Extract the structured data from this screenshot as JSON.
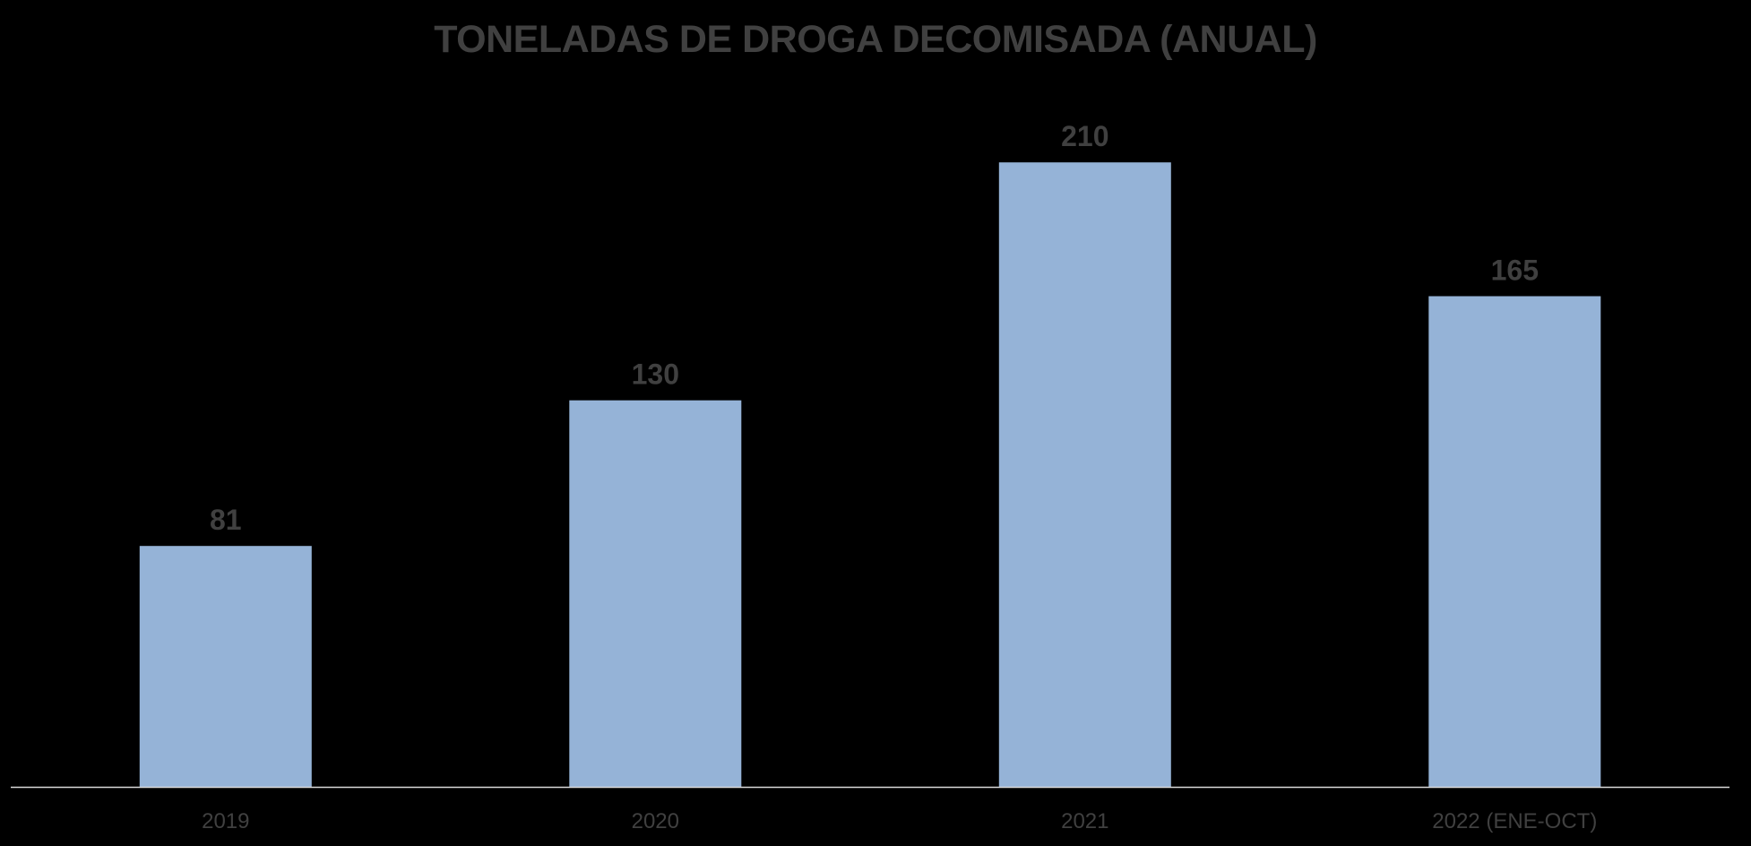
{
  "colors": {
    "background": "#000000",
    "bar": "#95B3D7",
    "text": "#404040",
    "axis": "#D9D9D9"
  },
  "chart_data": {
    "type": "bar",
    "title": "TONELADAS DE DROGA DECOMISADA (ANUAL)",
    "categories": [
      "2019",
      "2020",
      "2021",
      "2022 (ENE-OCT)"
    ],
    "values": [
      81,
      130,
      210,
      165
    ],
    "data_labels": [
      "81",
      "130",
      "210",
      "165"
    ],
    "xlabel": "",
    "ylabel": "",
    "ylim": [
      0,
      240
    ],
    "grid": false,
    "legend": "none"
  }
}
